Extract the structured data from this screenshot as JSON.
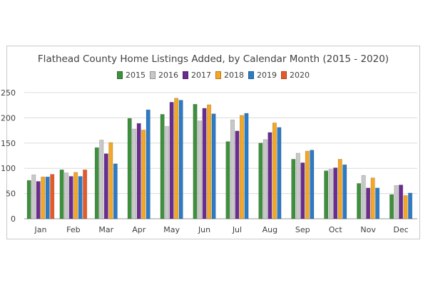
{
  "chart_data": {
    "type": "bar",
    "title": "Flathead County Home Listings Added, by Calendar Month (2015 - 2020)",
    "categories": [
      "Jan",
      "Feb",
      "Mar",
      "Apr",
      "May",
      "Jun",
      "Jul",
      "Aug",
      "Sep",
      "Oct",
      "Nov",
      "Dec"
    ],
    "ylim": [
      0,
      250
    ],
    "yticks": [
      "0",
      "50",
      "100",
      "150",
      "200",
      "250"
    ],
    "grid": "horizontal",
    "legend_position": "top",
    "series": [
      {
        "name": "2015",
        "color": "#3e8f3e",
        "values": [
          76,
          97,
          141,
          199,
          207,
          227,
          153,
          150,
          118,
          95,
          70,
          48
        ]
      },
      {
        "name": "2016",
        "color": "#c8c8c8",
        "values": [
          87,
          91,
          156,
          178,
          183,
          194,
          196,
          157,
          130,
          98,
          86,
          66
        ]
      },
      {
        "name": "2017",
        "color": "#6a2c8e",
        "values": [
          74,
          84,
          129,
          189,
          231,
          219,
          174,
          171,
          111,
          101,
          61,
          67
        ]
      },
      {
        "name": "2018",
        "color": "#f5a623",
        "values": [
          83,
          92,
          151,
          176,
          239,
          226,
          205,
          190,
          134,
          118,
          81,
          46
        ]
      },
      {
        "name": "2019",
        "color": "#2c7bc4",
        "values": [
          83,
          84,
          109,
          216,
          235,
          208,
          209,
          181,
          136,
          107,
          61,
          51
        ]
      },
      {
        "name": "2020",
        "color": "#e65a2a",
        "values": [
          88,
          97,
          null,
          null,
          null,
          null,
          null,
          null,
          null,
          null,
          null,
          null
        ]
      }
    ]
  }
}
